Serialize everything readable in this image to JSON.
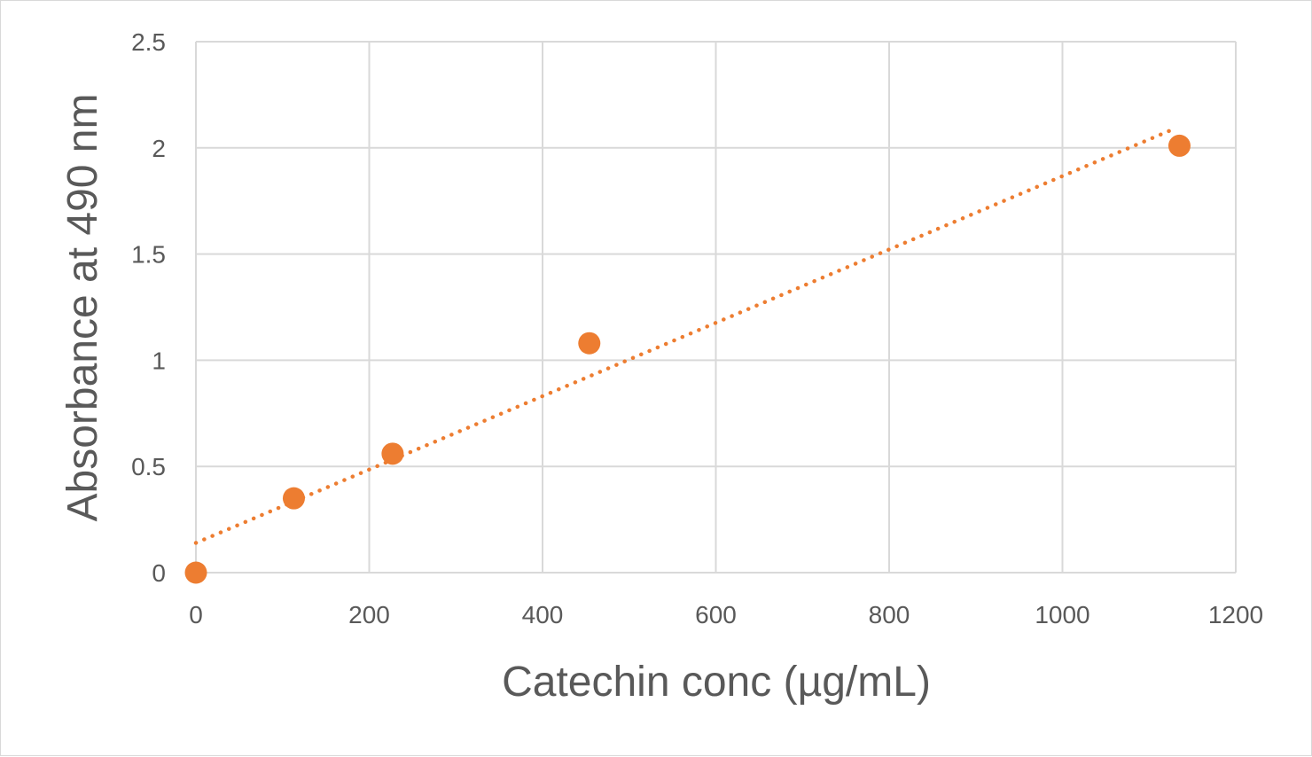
{
  "chart_data": {
    "type": "scatter",
    "title": "",
    "xlabel": "Catechin conc (µg/mL)",
    "ylabel": "Absorbance at 490 nm",
    "xlim": [
      0,
      1200
    ],
    "ylim": [
      0,
      2.5
    ],
    "x_ticks": [
      0,
      200,
      400,
      600,
      800,
      1000,
      1200
    ],
    "y_ticks": [
      0,
      0.5,
      1,
      1.5,
      2,
      2.5
    ],
    "x_tick_labels": [
      "0",
      "200",
      "400",
      "600",
      "800",
      "1000",
      "1200"
    ],
    "y_tick_labels": [
      "0",
      "0.5",
      "1",
      "1.5",
      "2",
      "2.5"
    ],
    "grid": true,
    "legend": "none",
    "series": [
      {
        "x": [
          0,
          113,
          227,
          454,
          1135
        ],
        "y": [
          0,
          0.35,
          0.56,
          1.08,
          2.01
        ],
        "color": "#ED7D31"
      }
    ],
    "trendline": {
      "type": "linear",
      "style": "dotted",
      "color": "#ED7D31",
      "x_range": [
        0,
        1130
      ],
      "slope": 0.001727,
      "intercept": 0.14
    }
  }
}
